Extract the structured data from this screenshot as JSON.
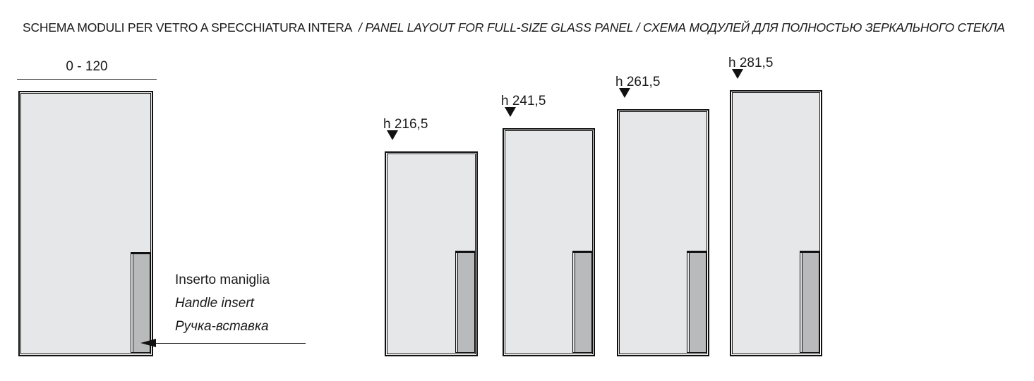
{
  "header": {
    "title_primary": "SCHEMA MODULI PER VETRO A SPECCHIATURA INTERA",
    "title_secondary": "/ PANEL LAYOUT FOR FULL-SIZE GLASS PANEL / СХЕМА МОДУЛЕЙ ДЛЯ ПОЛНОСТЬЮ ЗЕРКАЛЬНОГО СТЕКЛА"
  },
  "reference_module": {
    "width_range_label": "0 - 120",
    "handle_callout": {
      "it": "Inserto maniglia",
      "en": "Handle insert",
      "ru": "Ручка-вставка"
    }
  },
  "height_modules": [
    {
      "height_label": "h 216,5"
    },
    {
      "height_label": "h 241,5"
    },
    {
      "height_label": "h 261,5"
    },
    {
      "height_label": "h 281,5"
    }
  ],
  "icons": {
    "height_marker": "triangle-down-icon",
    "callout_pointer": "arrow-left-icon"
  },
  "colors": {
    "panel_fill": "#e6e7e8",
    "handle_fill": "#b9babb",
    "line": "#111111",
    "text": "#1a1a1a"
  }
}
